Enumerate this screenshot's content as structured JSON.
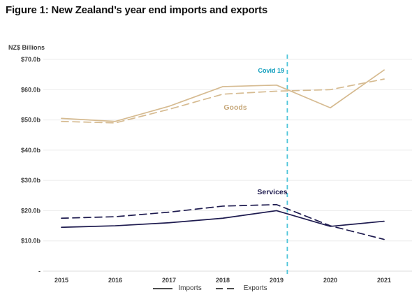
{
  "chart_data": {
    "type": "line",
    "title": "Figure 1: New Zealand’s year end imports and exports",
    "ylabel": "NZ$ Billions",
    "xlabel": "",
    "categories": [
      "2015",
      "2016",
      "2017",
      "2018",
      "2019",
      "2020",
      "2021"
    ],
    "ylim": [
      0,
      70
    ],
    "grid": true,
    "legend_position": "bottom-center",
    "y_ticks": [
      {
        "value": 70,
        "label": "$70.0b"
      },
      {
        "value": 60,
        "label": "$60.0b"
      },
      {
        "value": 50,
        "label": "$50.0b"
      },
      {
        "value": 40,
        "label": "$40.0b"
      },
      {
        "value": 30,
        "label": "$30.0b"
      },
      {
        "value": 20,
        "label": "$20.0b"
      },
      {
        "value": 10,
        "label": "$10.0b"
      },
      {
        "value": 0,
        "label": "-"
      }
    ],
    "series": [
      {
        "id": "goods-imports",
        "name": "Goods Imports",
        "group": "Goods",
        "style": "solid",
        "color": "#d6bb91",
        "values": [
          50.5,
          49.5,
          54.5,
          61.0,
          61.5,
          54.0,
          66.5
        ]
      },
      {
        "id": "goods-exports",
        "name": "Goods Exports",
        "group": "Goods",
        "style": "dashed",
        "color": "#d6bb91",
        "values": [
          49.5,
          49.0,
          53.5,
          58.5,
          59.5,
          60.0,
          63.5
        ]
      },
      {
        "id": "services-imports",
        "name": "Services Imports",
        "group": "Services",
        "style": "solid",
        "color": "#1e1b4f",
        "values": [
          14.5,
          15.0,
          16.0,
          17.5,
          20.0,
          14.8,
          16.5
        ]
      },
      {
        "id": "services-exports",
        "name": "Services Exports",
        "group": "Services",
        "style": "dashed",
        "color": "#1e1b4f",
        "values": [
          17.5,
          18.0,
          19.5,
          21.5,
          22.0,
          15.0,
          10.5
        ]
      }
    ],
    "annotations": [
      {
        "id": "covid",
        "text": "Covid 19",
        "color": "#0d9dbc"
      },
      {
        "id": "goods",
        "text": "Goods",
        "color": "#c7a97c"
      },
      {
        "id": "services",
        "text": "Services",
        "color": "#1e1b4f"
      }
    ],
    "covid_line": {
      "year": 2019.2,
      "color": "#4cc4d9",
      "style": "dashed"
    },
    "legend": [
      {
        "label": "Imports",
        "style": "solid"
      },
      {
        "label": "Exports",
        "style": "dashed"
      }
    ],
    "legend_swatch_color": "#4d4d4d",
    "colors": {
      "gridline": "#ebebeb",
      "zero_line": "#dedede",
      "axis_text": "#3d3d3d"
    }
  }
}
